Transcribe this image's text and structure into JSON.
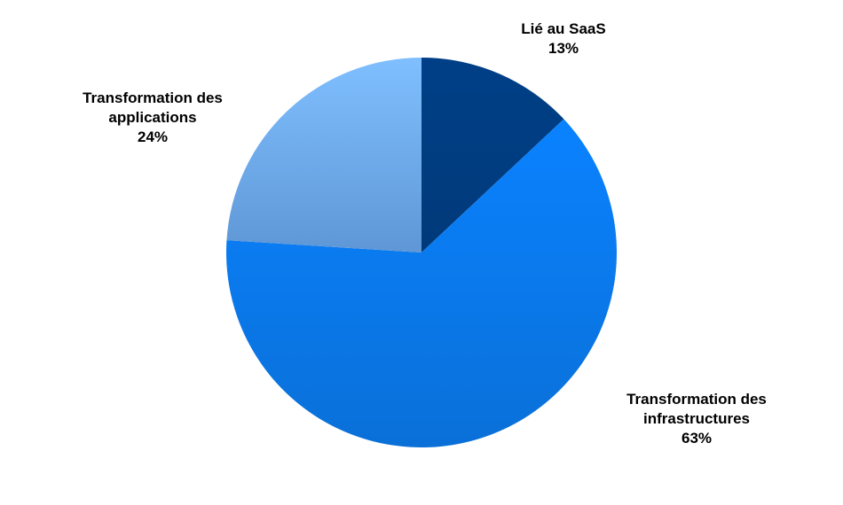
{
  "chart_data": {
    "type": "pie",
    "title": "",
    "start_angle_deg": 0,
    "direction": "clockwise",
    "slices": [
      {
        "label": "Lié au SaaS",
        "value": 13,
        "value_label": "13%",
        "color": "#003F87"
      },
      {
        "label": "Transformation des\ninfrastructures",
        "value": 63,
        "value_label": "63%",
        "color": "#0B7BEA"
      },
      {
        "label": "Transformation des\napplications",
        "value": 24,
        "value_label": "24%",
        "color": "#6FA8E2"
      }
    ],
    "legend": "none",
    "data_labels": "outside"
  }
}
